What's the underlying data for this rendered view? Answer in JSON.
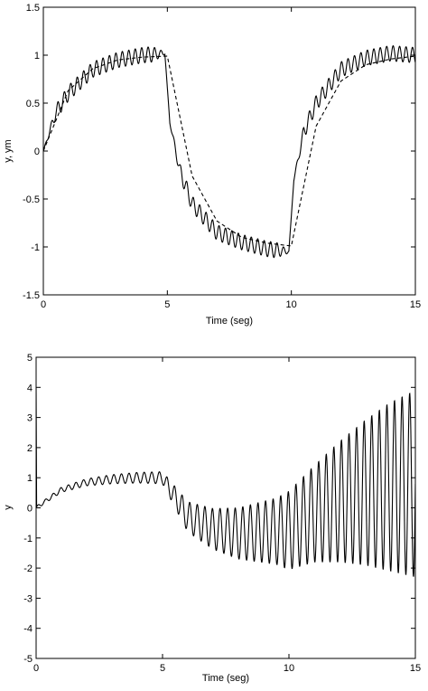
{
  "chart_data": [
    {
      "type": "line",
      "title": "",
      "xlabel": "Time (seg)",
      "ylabel": "y, ym",
      "xlim": [
        0,
        15
      ],
      "ylim": [
        -1.5,
        1.5
      ],
      "xticks": [
        "0",
        "5",
        "10",
        "15"
      ],
      "yticks": [
        "-1.5",
        "-1",
        "-0.5",
        "0",
        "0.5",
        "1",
        "1.5"
      ],
      "grid": false,
      "legend": "none",
      "series": [
        {
          "style": "solid",
          "description_points": {
            "x": [
              0,
              0.5,
              1,
              2,
              3,
              4,
              4.9,
              5.1,
              5.5,
              6,
              7,
              8,
              9,
              9.9,
              10.1,
              10.5,
              11,
              12,
              13,
              14,
              15
            ],
            "y": [
              0,
              0.4,
              0.6,
              0.85,
              0.95,
              1.0,
              1.02,
              0.3,
              -0.2,
              -0.55,
              -0.85,
              -0.95,
              -1.02,
              -1.05,
              -0.3,
              0.2,
              0.5,
              0.85,
              0.97,
              1.02,
              1.0
            ]
          },
          "oscillation_amplitude": 0.08,
          "oscillation_period": 0.26
        },
        {
          "style": "dashed",
          "description_points": {
            "x": [
              0,
              1,
              2,
              3,
              4,
              5,
              6,
              7,
              8,
              9,
              10,
              11,
              12,
              13,
              14,
              15
            ],
            "y": [
              0,
              0.63,
              0.86,
              0.95,
              0.98,
              0.99,
              -0.26,
              -0.73,
              -0.9,
              -0.96,
              -0.99,
              0.26,
              0.73,
              0.9,
              0.96,
              0.99
            ]
          }
        }
      ]
    },
    {
      "type": "line",
      "title": "",
      "xlabel": "Time (seg)",
      "ylabel": "y",
      "xlim": [
        0,
        15
      ],
      "ylim": [
        -5,
        5
      ],
      "xticks": [
        "0",
        "5",
        "10",
        "15"
      ],
      "yticks": [
        "-5",
        "-4",
        "-3",
        "-2",
        "-1",
        "0",
        "1",
        "2",
        "3",
        "4",
        "5"
      ],
      "grid": false,
      "legend": "none",
      "series": [
        {
          "style": "solid",
          "center_points": {
            "x": [
              0,
              1,
              2,
              3,
              4,
              5,
              6,
              7,
              8,
              9,
              10,
              11,
              12,
              13,
              14,
              15
            ],
            "y": [
              0,
              0.6,
              0.85,
              0.95,
              1.0,
              1.0,
              -0.3,
              -0.7,
              -0.85,
              -0.8,
              -0.75,
              -0.2,
              0.2,
              0.5,
              0.7,
              0.8
            ]
          },
          "amplitude_points": {
            "x": [
              0,
              3,
              5,
              6,
              8,
              9.5,
              10,
              11,
              12,
              13,
              14,
              15
            ],
            "y": [
              0.05,
              0.15,
              0.2,
              0.5,
              0.85,
              1.1,
              1.3,
              1.6,
              2.0,
              2.4,
              2.8,
              3.1
            ]
          },
          "oscillation_period": 0.3,
          "start_spike": {
            "x": 0,
            "y": 4.0
          }
        }
      ]
    }
  ]
}
